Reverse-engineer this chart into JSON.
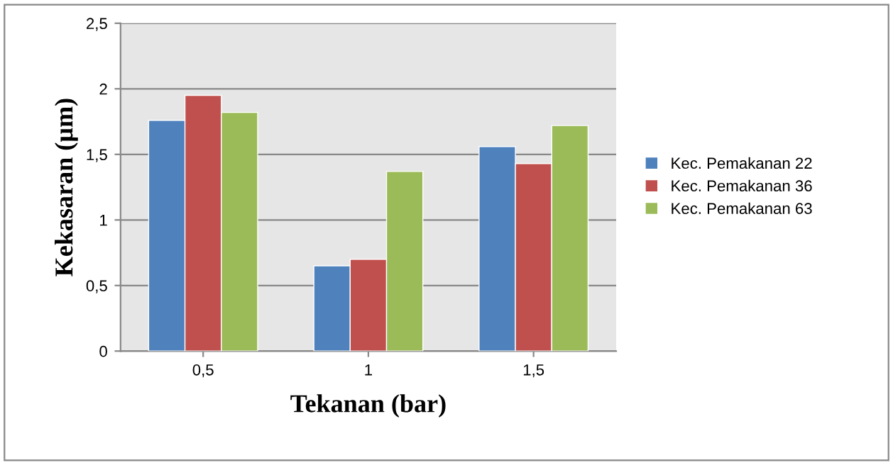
{
  "chart_data": {
    "type": "bar",
    "xlabel": "Tekanan (bar)",
    "ylabel": "Kekasaran (µm)",
    "categories": [
      "0,5",
      "1",
      "1,5"
    ],
    "series": [
      {
        "name": "Kec. Pemakanan 22",
        "color": "#4f81bd",
        "values": [
          1.76,
          0.65,
          1.56
        ]
      },
      {
        "name": "Kec. Pemakanan 36",
        "color": "#c0504d",
        "values": [
          1.95,
          0.7,
          1.43
        ]
      },
      {
        "name": "Kec. Pemakanan 63",
        "color": "#9bbb59",
        "values": [
          1.82,
          1.37,
          1.72
        ]
      }
    ],
    "ylim": [
      0,
      2.5
    ],
    "yticks": [
      0,
      {
        "value": 0.5,
        "label": "0,5"
      },
      1,
      {
        "value": 1.5,
        "label": "1,5"
      },
      2,
      {
        "value": 2.5,
        "label": "2,5"
      }
    ],
    "grid": "y",
    "legend": "right"
  }
}
